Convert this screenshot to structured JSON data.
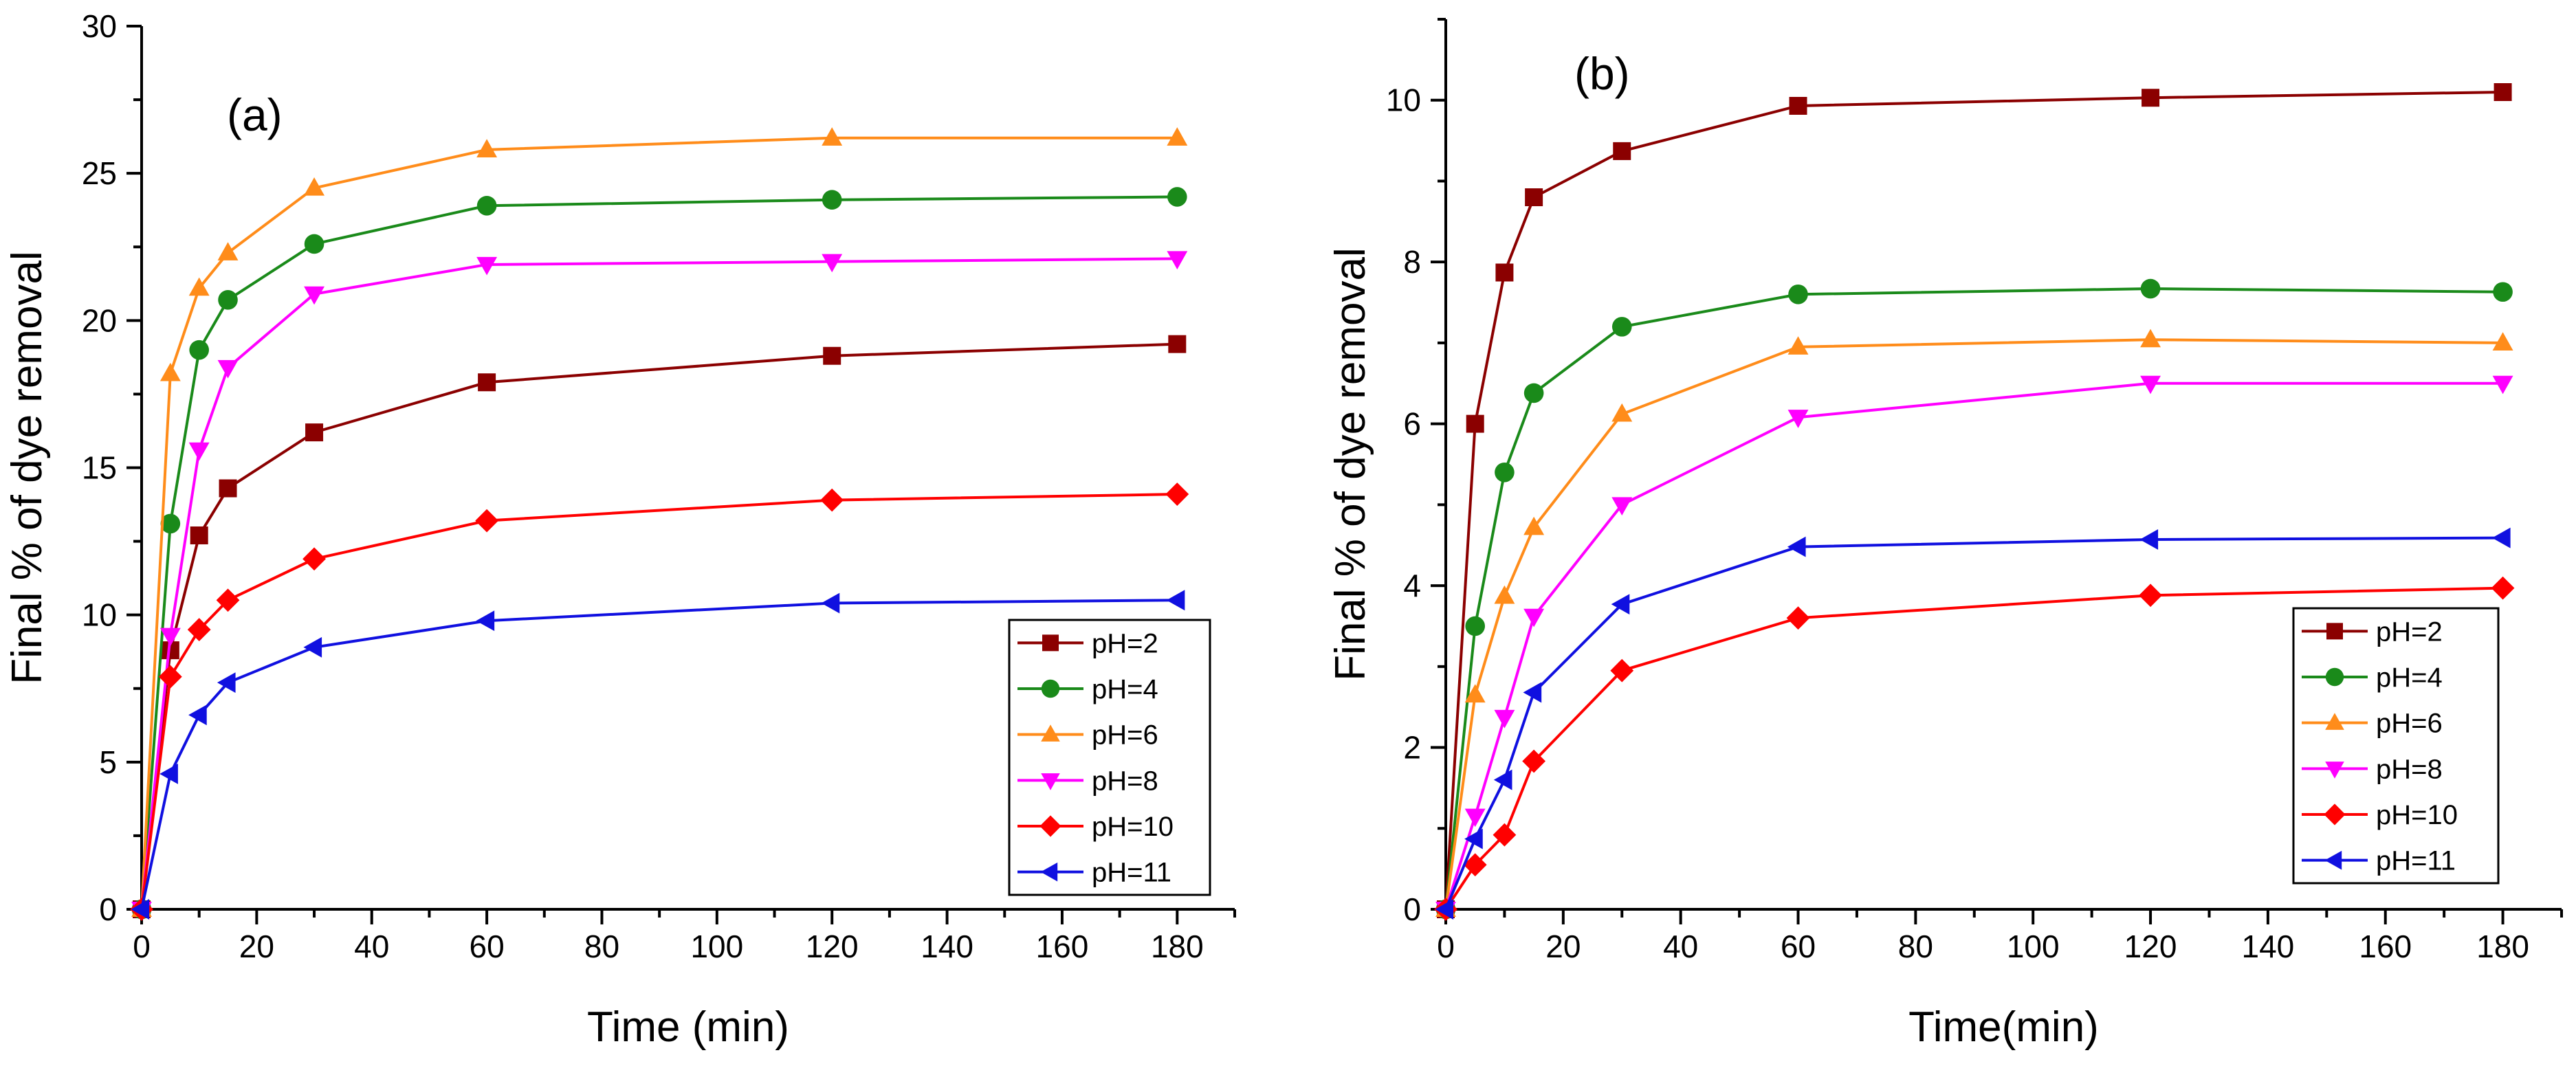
{
  "chart_data": [
    {
      "type": "line",
      "panel_label": "(a)",
      "xlabel": "Time (min)",
      "ylabel": "Final % of dye removal",
      "xlim": [
        0,
        190
      ],
      "ylim": [
        0,
        30
      ],
      "xticks": [
        0,
        20,
        40,
        60,
        80,
        100,
        120,
        140,
        160,
        180
      ],
      "yticks": [
        0,
        5,
        10,
        15,
        20,
        25,
        30
      ],
      "x": [
        0,
        5,
        10,
        15,
        30,
        60,
        120,
        180
      ],
      "legend_position": "bottom-right",
      "series": [
        {
          "name": "pH=2",
          "color": "#8b0000",
          "marker": "square",
          "values": [
            0,
            8.8,
            12.7,
            14.3,
            16.2,
            17.9,
            18.8,
            19.2
          ]
        },
        {
          "name": "pH=4",
          "color": "#1a8a1a",
          "marker": "circle",
          "values": [
            0,
            13.1,
            19.0,
            20.7,
            22.6,
            23.9,
            24.1,
            24.2
          ]
        },
        {
          "name": "pH=6",
          "color": "#ff8c1a",
          "marker": "triangle-up",
          "values": [
            0,
            18.2,
            21.1,
            22.3,
            24.5,
            25.8,
            26.2,
            26.2
          ]
        },
        {
          "name": "pH=8",
          "color": "#ff00ff",
          "marker": "triangle-down",
          "values": [
            0,
            9.3,
            15.6,
            18.4,
            20.9,
            21.9,
            22.0,
            22.1
          ]
        },
        {
          "name": "pH=10",
          "color": "#ff0000",
          "marker": "diamond",
          "values": [
            0,
            7.9,
            9.5,
            10.5,
            11.9,
            13.2,
            13.9,
            14.1
          ]
        },
        {
          "name": "pH=11",
          "color": "#1010e0",
          "marker": "triangle-left",
          "values": [
            0,
            4.6,
            6.6,
            7.7,
            8.9,
            9.8,
            10.4,
            10.5
          ]
        }
      ]
    },
    {
      "type": "line",
      "panel_label": "(b)",
      "xlabel": "Time(min)",
      "ylabel": "Final % of dye removal",
      "xlim": [
        0,
        190
      ],
      "ylim": [
        0,
        11
      ],
      "xticks": [
        0,
        20,
        40,
        60,
        80,
        100,
        120,
        140,
        160,
        180
      ],
      "yticks": [
        0,
        2,
        4,
        6,
        8,
        10
      ],
      "x": [
        0,
        5,
        10,
        15,
        30,
        60,
        120,
        180
      ],
      "legend_position": "bottom-right",
      "series": [
        {
          "name": "pH=2",
          "color": "#8b0000",
          "marker": "square",
          "values": [
            0,
            6.0,
            7.87,
            8.8,
            9.37,
            9.93,
            10.03,
            10.1
          ]
        },
        {
          "name": "pH=4",
          "color": "#1a8a1a",
          "marker": "circle",
          "values": [
            0,
            3.5,
            5.4,
            6.38,
            7.2,
            7.6,
            7.67,
            7.63
          ]
        },
        {
          "name": "pH=6",
          "color": "#ff8c1a",
          "marker": "triangle-up",
          "values": [
            0,
            2.65,
            3.87,
            4.72,
            6.12,
            6.95,
            7.04,
            7.0
          ]
        },
        {
          "name": "pH=8",
          "color": "#ff00ff",
          "marker": "triangle-down",
          "values": [
            0,
            1.15,
            2.37,
            3.62,
            5.0,
            6.08,
            6.5,
            6.5
          ]
        },
        {
          "name": "pH=10",
          "color": "#ff0000",
          "marker": "diamond",
          "values": [
            0,
            0.55,
            0.92,
            1.83,
            2.95,
            3.6,
            3.88,
            3.97
          ]
        },
        {
          "name": "pH=11",
          "color": "#1010e0",
          "marker": "triangle-left",
          "values": [
            0,
            0.87,
            1.6,
            2.68,
            3.77,
            4.48,
            4.57,
            4.59
          ]
        }
      ]
    }
  ]
}
